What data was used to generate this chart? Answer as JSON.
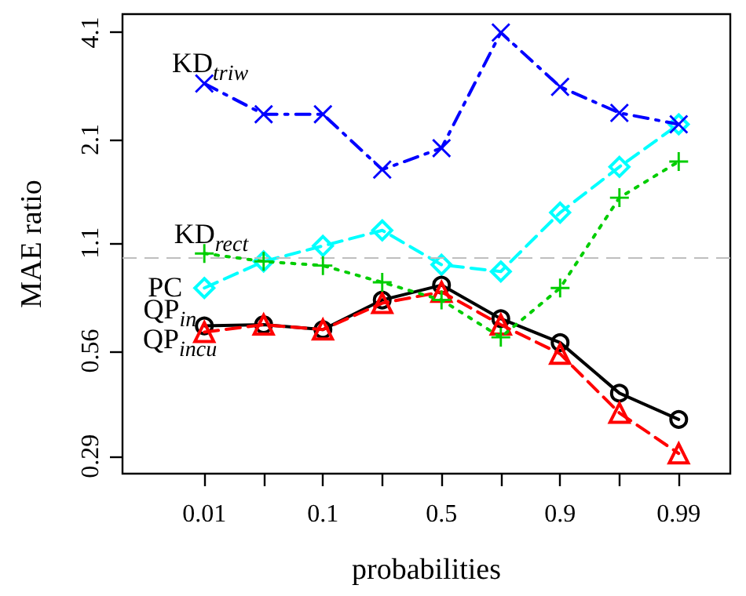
{
  "chart_data": {
    "type": "line",
    "xlabel": "probabilities",
    "ylabel": "MAE ratio",
    "categories": [
      "0.01",
      null,
      "0.1",
      null,
      "0.5",
      null,
      "0.9",
      null,
      "0.99"
    ],
    "log": "y",
    "ylim": [
      0.26,
      4.6
    ],
    "yticks": [
      0.29,
      0.56,
      1.1,
      2.1,
      4.1
    ],
    "grid": false,
    "legend": false,
    "ref_lines": [
      {
        "axis": "y",
        "value": 1,
        "color": "#bebebe",
        "line_style": "dashed"
      }
    ],
    "series": [
      {
        "name": "KD$_{triw}$",
        "color": "#0000ff",
        "marker": "x",
        "line_style": "dashdot",
        "values": [
          2.98,
          2.46,
          2.46,
          1.74,
          1.99,
          4.1,
          2.92,
          2.48,
          2.31
        ]
      },
      {
        "name": "KD$_{rect}$",
        "color": "#00ffff",
        "marker": "diamond",
        "line_style": "dashed",
        "values": [
          0.83,
          0.98,
          1.08,
          1.19,
          0.96,
          0.92,
          1.33,
          1.77,
          2.31
        ]
      },
      {
        "name": "PC",
        "color": "#00cd00",
        "marker": "cross",
        "line_style": "dotted",
        "values": [
          1.03,
          0.98,
          0.955,
          0.86,
          0.77,
          0.61,
          0.83,
          1.46,
          1.83
        ]
      },
      {
        "name": "QP$_{in}$",
        "color": "#000000",
        "marker": "circle",
        "line_style": "solid",
        "values": [
          0.655,
          0.66,
          0.64,
          0.77,
          0.845,
          0.685,
          0.59,
          0.43,
          0.365
        ]
      },
      {
        "name": "QP$_{incu}$",
        "color": "#ff0000",
        "marker": "triangle",
        "line_style": "dashed",
        "values": [
          0.63,
          0.66,
          0.64,
          0.755,
          0.81,
          0.66,
          0.55,
          0.38,
          0.295
        ]
      }
    ]
  }
}
